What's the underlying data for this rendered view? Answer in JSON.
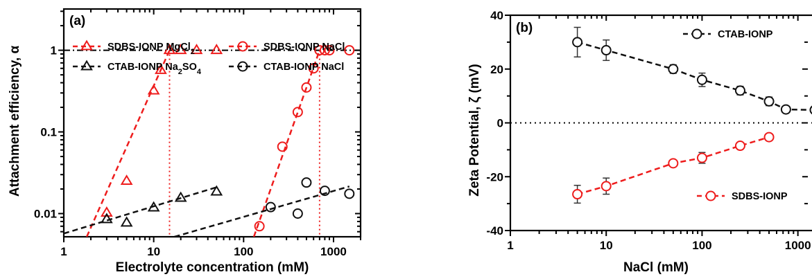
{
  "chart_data": [
    {
      "type": "scatter",
      "panel_label": "(a)",
      "xlabel": "Electrolyte concentration (mM)",
      "ylabel": "Attachment efficiency, α",
      "xscale": "log",
      "yscale": "log",
      "xlim": [
        1,
        2000
      ],
      "ylim": [
        0.0052,
        3.2
      ],
      "xticks": [
        1,
        10,
        100,
        1000
      ],
      "xtick_labels": [
        "1",
        "10",
        "100",
        "1000"
      ],
      "yticks": [
        0.01,
        0.1,
        1
      ],
      "ytick_labels": [
        "0.01",
        "0.1",
        "1"
      ],
      "legend_position": "top",
      "reference_line": {
        "y": 1
      },
      "series": [
        {
          "name": "SDBS-IONP MgCl",
          "name_sub": "2",
          "marker": "triangle",
          "color": "#ee1c1c",
          "x": [
            3,
            5,
            10,
            12,
            15,
            20,
            30,
            50
          ],
          "y": [
            0.0102,
            0.025,
            0.32,
            0.57,
            1.0,
            1.0,
            1.0,
            1.0
          ],
          "fit": {
            "x": [
              1.8,
              15
            ],
            "y": [
              0.0052,
              1.0
            ]
          },
          "ccc": 15
        },
        {
          "name": "SDBS-IONP NaCl",
          "name_sub": "",
          "marker": "circle",
          "color": "#ee1c1c",
          "x": [
            150,
            270,
            400,
            500,
            600,
            700,
            800,
            900,
            1500
          ],
          "y": [
            0.007,
            0.066,
            0.175,
            0.35,
            0.6,
            1.0,
            1.0,
            1.0,
            1.0
          ],
          "fit": {
            "x": [
              130,
              700
            ],
            "y": [
              0.0052,
              1.0
            ]
          },
          "ccc": 700
        },
        {
          "name": "CTAB-IONP Na",
          "name_sub": "2",
          "name_suffix": "SO",
          "name_sub2": "4",
          "marker": "triangle",
          "color": "#111111",
          "x": [
            3,
            5,
            10,
            20,
            50
          ],
          "y": [
            0.0085,
            0.0077,
            0.0118,
            0.0155,
            0.0185
          ],
          "fit": {
            "x": [
              1,
              50
            ],
            "y": [
              0.0057,
              0.021
            ]
          }
        },
        {
          "name": "CTAB-IONP NaCl",
          "name_sub": "",
          "marker": "circle",
          "color": "#111111",
          "x": [
            200,
            400,
            500,
            800,
            1500
          ],
          "y": [
            0.012,
            0.01,
            0.024,
            0.019,
            0.0175
          ],
          "fit": {
            "x": [
              17,
              1500
            ],
            "y": [
              0.0052,
              0.0215
            ]
          }
        }
      ]
    },
    {
      "type": "scatter",
      "panel_label": "(b)",
      "xlabel": "NaCl (mM)",
      "ylabel": "Zeta Potential, ζ (mV)",
      "xscale": "log",
      "yscale": "linear",
      "xlim": [
        1,
        1500
      ],
      "ylim": [
        -40,
        40
      ],
      "xticks": [
        1,
        10,
        100,
        1000
      ],
      "xtick_labels": [
        "1",
        "10",
        "100",
        "1000"
      ],
      "yticks": [
        -40,
        -20,
        0,
        20,
        40
      ],
      "ytick_labels": [
        "-40",
        "-20",
        "0",
        "20",
        "40"
      ],
      "zero_line": {
        "y": 0
      },
      "series": [
        {
          "name": "CTAB-IONP",
          "marker": "circle",
          "color": "#111111",
          "legend_position": "top-right",
          "x": [
            5,
            10,
            50,
            100,
            250,
            500,
            750,
            1500
          ],
          "y": [
            30,
            27,
            20,
            16,
            12,
            8,
            5,
            4.8
          ],
          "err": [
            5.5,
            3.8,
            1.6,
            2.5,
            1.6,
            1.6,
            0,
            0
          ]
        },
        {
          "name": "SDBS-IONP",
          "marker": "circle",
          "color": "#ee1c1c",
          "legend_position": "bottom-right",
          "x": [
            5,
            10,
            50,
            100,
            250,
            500
          ],
          "y": [
            -26.5,
            -23.5,
            -15,
            -13,
            -8.5,
            -5.3
          ],
          "err": [
            3.3,
            3.0,
            1.0,
            2.0,
            1.0,
            0
          ]
        }
      ]
    }
  ]
}
